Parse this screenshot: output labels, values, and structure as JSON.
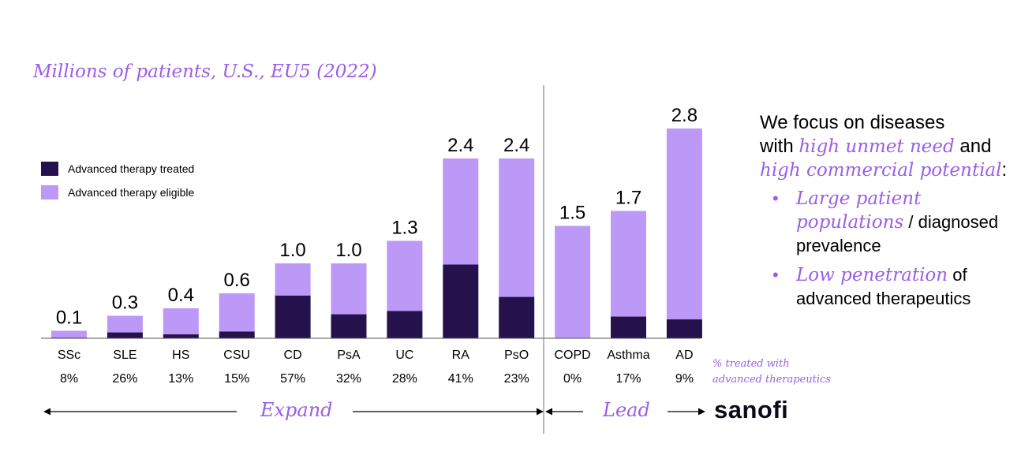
{
  "subtitle": "Millions of patients, U.S., EU5 (2022)",
  "legend": {
    "treated": "Advanced therapy treated",
    "eligible": "Advanced therapy eligible"
  },
  "colors": {
    "treated": "#25114b",
    "eligible": "#bc98f7",
    "accent": "#9a5ee6"
  },
  "chart_data": {
    "type": "bar",
    "stacked": true,
    "categories": [
      "SSc",
      "SLE",
      "HS",
      "CSU",
      "CD",
      "PsA",
      "UC",
      "RA",
      "PsO",
      "COPD",
      "Asthma",
      "AD"
    ],
    "totals": [
      0.1,
      0.3,
      0.4,
      0.6,
      1.0,
      1.0,
      1.3,
      2.4,
      2.4,
      1.5,
      1.7,
      2.8
    ],
    "total_labels": [
      "0.1",
      "0.3",
      "0.4",
      "0.6",
      "1.0",
      "1.0",
      "1.3",
      "2.4",
      "2.4",
      "1.5",
      "1.7",
      "2.8"
    ],
    "pct_treated_labels": [
      "8%",
      "26%",
      "13%",
      "15%",
      "57%",
      "32%",
      "28%",
      "41%",
      "23%",
      "0%",
      "17%",
      "9%"
    ],
    "pct_treated": [
      8,
      26,
      13,
      15,
      57,
      32,
      28,
      41,
      23,
      0,
      17,
      9
    ],
    "series": [
      {
        "name": "Advanced therapy treated"
      },
      {
        "name": "Advanced therapy eligible"
      }
    ],
    "ylim": [
      0,
      3.0
    ],
    "grid": false,
    "legend_position": "top-left"
  },
  "pct_note": {
    "line1": "% treated with",
    "line2": "advanced therapeutics"
  },
  "nav": {
    "expand": "Expand",
    "lead": "Lead"
  },
  "brand": "sanofi",
  "focus": {
    "intro1": "We focus on diseases",
    "intro2a": "with ",
    "highlight1": "high unmet need",
    "intro2b": " and",
    "highlight2": "high commercial potential",
    "intro3b": ":",
    "bullet1_em": "Large patient populations",
    "bullet1_rest": " / diagnosed prevalence",
    "bullet2_em": "Low penetration",
    "bullet2_rest": " of advanced therapeutics"
  }
}
